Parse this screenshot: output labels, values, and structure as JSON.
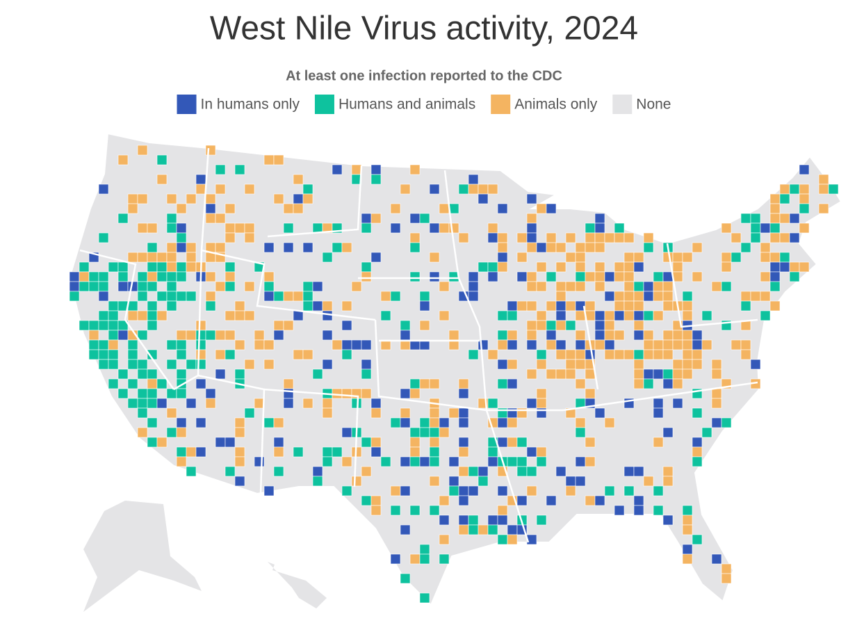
{
  "title": "West Nile Virus activity, 2024",
  "subtitle": "At least one infection reported to the CDC",
  "legend": {
    "items": [
      {
        "name": "In humans only",
        "color": "#3358b8"
      },
      {
        "name": "Humans and animals",
        "color": "#0ec29e"
      },
      {
        "name": "Animals only",
        "color": "#f4b461"
      },
      {
        "name": "None",
        "color": "#e4e4e6"
      }
    ]
  }
}
